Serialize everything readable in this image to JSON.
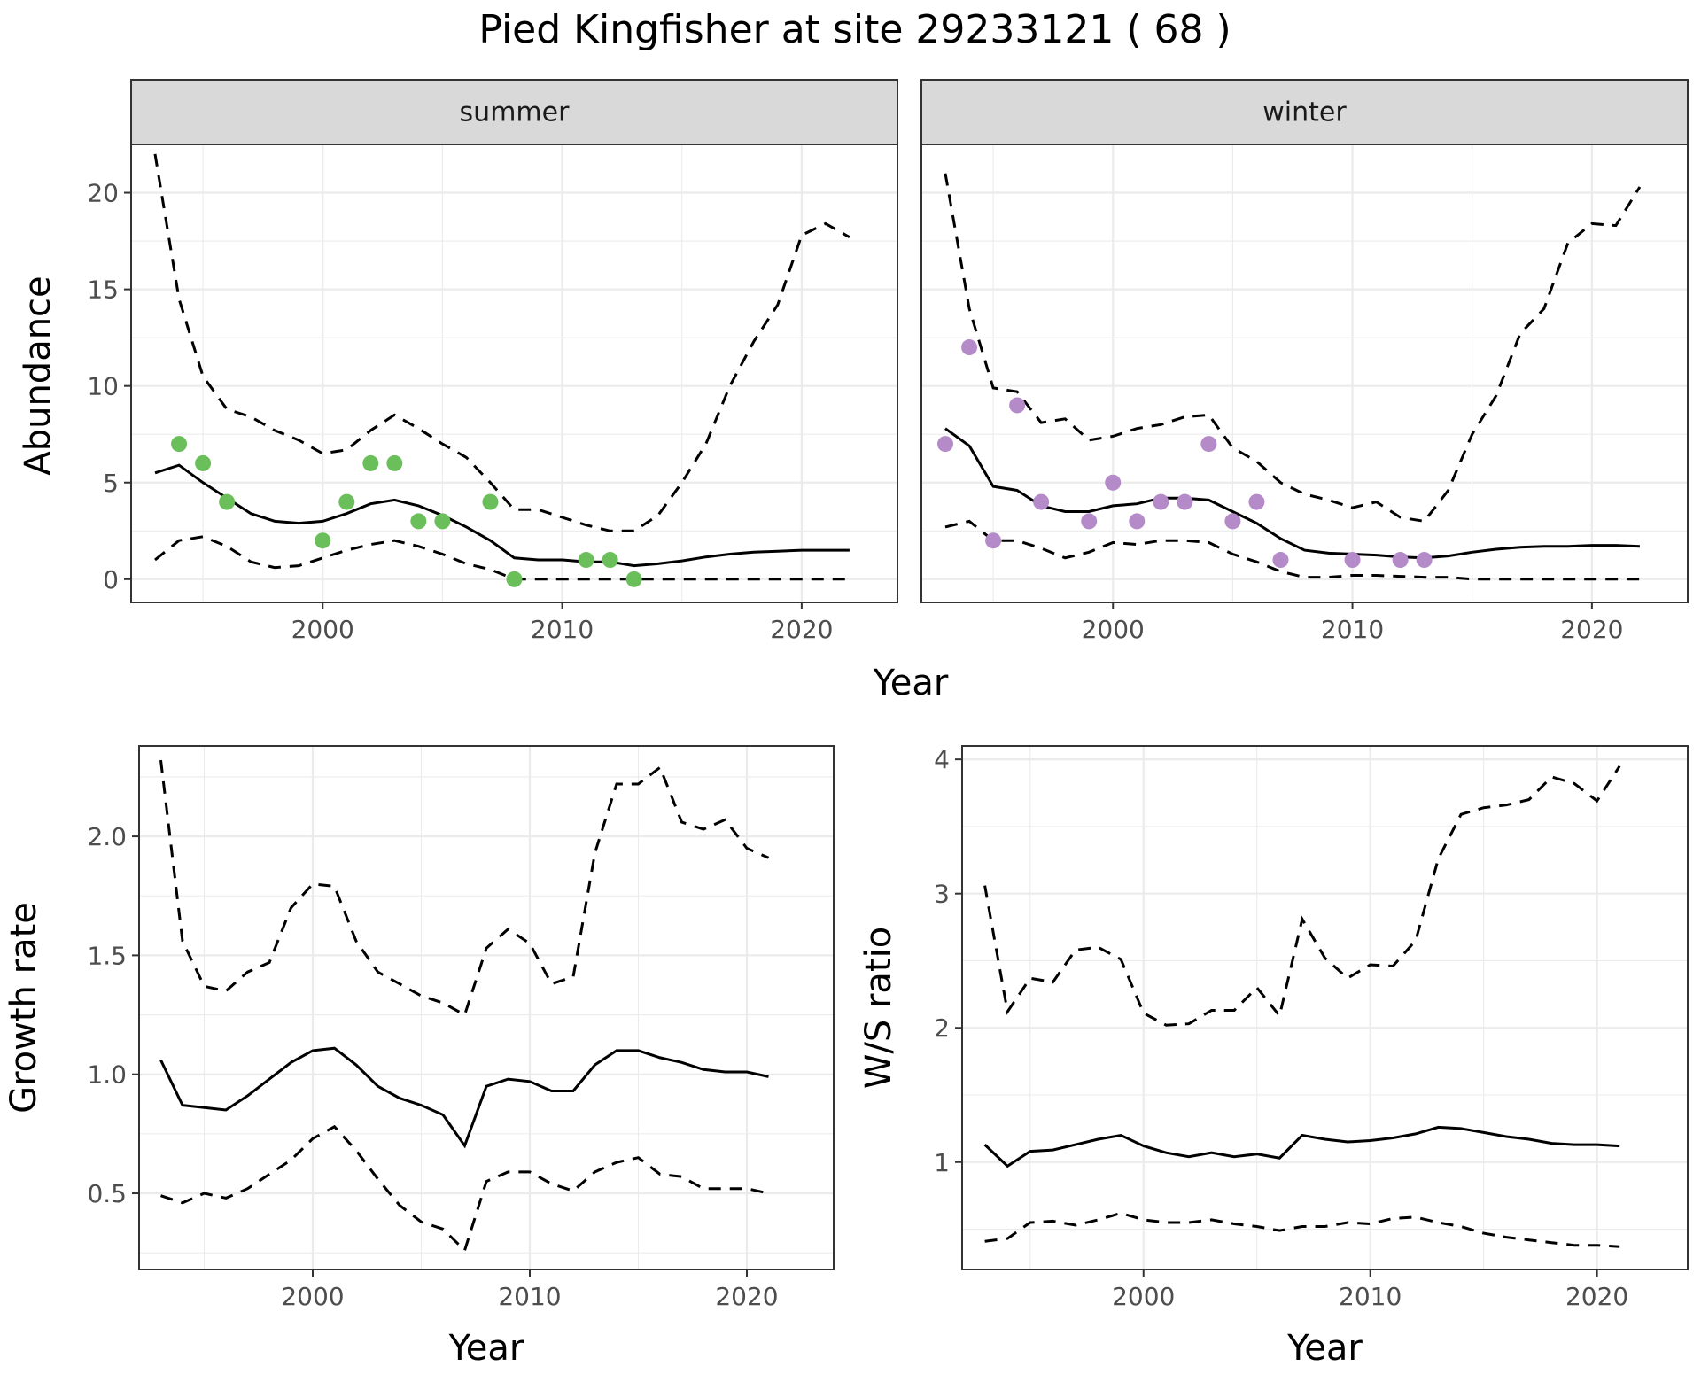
{
  "title": "Pied Kingfisher at site 29233121 ( 68 )",
  "colors": {
    "summer": "#6abf5b",
    "winter": "#b58ac8",
    "line": "#000000",
    "strip": "#d9d9d9"
  },
  "chart_data": [
    {
      "type": "line",
      "facet": "summer",
      "xlabel": "Year",
      "ylabel": "Abundance",
      "xlim": [
        1992,
        2024
      ],
      "ylim": [
        -1.2,
        22.5
      ],
      "xticks": [
        2000,
        2010,
        2020
      ],
      "yticks": [
        0,
        5,
        10,
        15,
        20
      ],
      "series": [
        {
          "role": "estimate",
          "x": [
            1993,
            1994,
            1995,
            1996,
            1997,
            1998,
            1999,
            2000,
            2001,
            2002,
            2003,
            2004,
            2005,
            2006,
            2007,
            2008,
            2009,
            2010,
            2011,
            2012,
            2013,
            2014,
            2015,
            2016,
            2017,
            2018,
            2019,
            2020,
            2021,
            2022
          ],
          "y": [
            5.5,
            5.9,
            5.0,
            4.2,
            3.4,
            3.0,
            2.9,
            3.0,
            3.4,
            3.9,
            4.1,
            3.8,
            3.3,
            2.7,
            2.0,
            1.1,
            1.0,
            1.0,
            0.9,
            0.9,
            0.7,
            0.8,
            0.95,
            1.15,
            1.3,
            1.4,
            1.45,
            1.5,
            1.5,
            1.5
          ]
        },
        {
          "role": "upper",
          "x": [
            1993,
            1994,
            1995,
            1996,
            1997,
            1998,
            1999,
            2000,
            2001,
            2002,
            2003,
            2004,
            2005,
            2006,
            2007,
            2008,
            2009,
            2010,
            2011,
            2012,
            2013,
            2014,
            2015,
            2016,
            2017,
            2018,
            2019,
            2020,
            2021,
            2022
          ],
          "y": [
            22.0,
            14.5,
            10.5,
            8.8,
            8.4,
            7.7,
            7.2,
            6.5,
            6.7,
            7.7,
            8.5,
            7.8,
            7.0,
            6.3,
            5.0,
            3.6,
            3.6,
            3.2,
            2.8,
            2.5,
            2.5,
            3.3,
            5.0,
            7.0,
            10.0,
            12.3,
            14.2,
            17.8,
            18.4,
            17.7
          ]
        },
        {
          "role": "lower",
          "x": [
            1993,
            1994,
            1995,
            1996,
            1997,
            1998,
            1999,
            2000,
            2001,
            2002,
            2003,
            2004,
            2005,
            2006,
            2007,
            2008,
            2009,
            2010,
            2011,
            2012,
            2013,
            2014,
            2015,
            2016,
            2017,
            2018,
            2019,
            2020,
            2021,
            2022
          ],
          "y": [
            1.0,
            2.0,
            2.2,
            1.7,
            0.9,
            0.6,
            0.7,
            1.1,
            1.5,
            1.8,
            2.0,
            1.7,
            1.3,
            0.8,
            0.5,
            0.0,
            0.0,
            0.0,
            0.0,
            0.0,
            0.0,
            0.0,
            0.0,
            0.0,
            0.0,
            0.0,
            0.0,
            0.0,
            0.0,
            0.0
          ]
        },
        {
          "role": "observed",
          "x": [
            1994,
            1995,
            1996,
            2000,
            2001,
            2002,
            2003,
            2004,
            2005,
            2007,
            2008,
            2011,
            2012,
            2013
          ],
          "y": [
            7,
            6,
            4,
            2,
            4,
            6,
            6,
            3,
            3,
            4,
            0,
            1,
            1,
            0
          ]
        }
      ]
    },
    {
      "type": "line",
      "facet": "winter",
      "xlabel": "Year",
      "ylabel": "Abundance",
      "xlim": [
        1992,
        2024
      ],
      "ylim": [
        -1.2,
        22.5
      ],
      "xticks": [
        2000,
        2010,
        2020
      ],
      "yticks": [
        0,
        5,
        10,
        15,
        20
      ],
      "series": [
        {
          "role": "estimate",
          "x": [
            1993,
            1994,
            1995,
            1996,
            1997,
            1998,
            1999,
            2000,
            2001,
            2002,
            2003,
            2004,
            2005,
            2006,
            2007,
            2008,
            2009,
            2010,
            2011,
            2012,
            2013,
            2014,
            2015,
            2016,
            2017,
            2018,
            2019,
            2020,
            2021,
            2022
          ],
          "y": [
            7.8,
            6.9,
            4.8,
            4.6,
            3.8,
            3.5,
            3.5,
            3.8,
            3.9,
            4.2,
            4.2,
            4.1,
            3.5,
            2.9,
            2.1,
            1.5,
            1.35,
            1.3,
            1.25,
            1.15,
            1.1,
            1.2,
            1.4,
            1.55,
            1.65,
            1.7,
            1.7,
            1.75,
            1.75,
            1.7
          ]
        },
        {
          "role": "upper",
          "x": [
            1993,
            1994,
            1995,
            1996,
            1997,
            1998,
            1999,
            2000,
            2001,
            2002,
            2003,
            2004,
            2005,
            2006,
            2007,
            2008,
            2009,
            2010,
            2011,
            2012,
            2013,
            2014,
            2015,
            2016,
            2017,
            2018,
            2019,
            2020,
            2021,
            2022
          ],
          "y": [
            21.0,
            14.0,
            9.9,
            9.7,
            8.1,
            8.3,
            7.2,
            7.4,
            7.8,
            8.0,
            8.4,
            8.5,
            6.8,
            6.1,
            5.0,
            4.4,
            4.1,
            3.7,
            4.0,
            3.2,
            3.0,
            4.6,
            7.5,
            9.5,
            12.7,
            14.0,
            17.4,
            18.4,
            18.3,
            20.3
          ]
        },
        {
          "role": "lower",
          "x": [
            1993,
            1994,
            1995,
            1996,
            1997,
            1998,
            1999,
            2000,
            2001,
            2002,
            2003,
            2004,
            2005,
            2006,
            2007,
            2008,
            2009,
            2010,
            2011,
            2012,
            2013,
            2014,
            2015,
            2016,
            2017,
            2018,
            2019,
            2020,
            2021,
            2022
          ],
          "y": [
            2.7,
            3.0,
            2.0,
            2.0,
            1.6,
            1.1,
            1.4,
            1.9,
            1.8,
            2.0,
            2.0,
            1.9,
            1.3,
            0.9,
            0.4,
            0.1,
            0.1,
            0.2,
            0.2,
            0.15,
            0.1,
            0.1,
            0.0,
            0.0,
            0.0,
            0.0,
            0.0,
            0.0,
            0.0,
            0.0
          ]
        },
        {
          "role": "observed",
          "x": [
            1993,
            1994,
            1995,
            1996,
            1997,
            1999,
            2000,
            2001,
            2002,
            2003,
            2004,
            2005,
            2006,
            2007,
            2010,
            2012,
            2013
          ],
          "y": [
            7,
            12,
            2,
            9,
            4,
            3,
            5,
            3,
            4,
            4,
            7,
            3,
            4,
            1,
            1,
            1,
            1
          ]
        }
      ]
    },
    {
      "type": "line",
      "xlabel": "Year",
      "ylabel": "Growth rate",
      "xlim": [
        1992,
        2024
      ],
      "ylim": [
        0.18,
        2.38
      ],
      "xticks": [
        2000,
        2010,
        2020
      ],
      "yticks": [
        0.5,
        1.0,
        1.5,
        2.0
      ],
      "yticklabels": [
        "0.5",
        "1.0",
        "1.5",
        "2.0"
      ],
      "series": [
        {
          "role": "estimate",
          "x": [
            1993,
            1994,
            1995,
            1996,
            1997,
            1998,
            1999,
            2000,
            2001,
            2002,
            2003,
            2004,
            2005,
            2006,
            2007,
            2008,
            2009,
            2010,
            2011,
            2012,
            2013,
            2014,
            2015,
            2016,
            2017,
            2018,
            2019,
            2020,
            2021
          ],
          "y": [
            1.06,
            0.87,
            0.86,
            0.85,
            0.91,
            0.98,
            1.05,
            1.1,
            1.11,
            1.04,
            0.95,
            0.9,
            0.87,
            0.83,
            0.7,
            0.95,
            0.98,
            0.97,
            0.93,
            0.93,
            1.04,
            1.1,
            1.1,
            1.07,
            1.05,
            1.02,
            1.01,
            1.01,
            0.99
          ]
        },
        {
          "role": "upper",
          "x": [
            1993,
            1994,
            1995,
            1996,
            1997,
            1998,
            1999,
            2000,
            2001,
            2002,
            2003,
            2004,
            2005,
            2006,
            2007,
            2008,
            2009,
            2010,
            2011,
            2012,
            2013,
            2014,
            2015,
            2016,
            2017,
            2018,
            2019,
            2020,
            2021
          ],
          "y": [
            2.32,
            1.56,
            1.37,
            1.35,
            1.43,
            1.47,
            1.7,
            1.8,
            1.79,
            1.56,
            1.43,
            1.38,
            1.33,
            1.3,
            1.25,
            1.53,
            1.61,
            1.55,
            1.38,
            1.41,
            1.93,
            2.22,
            2.22,
            2.29,
            2.06,
            2.03,
            2.07,
            1.95,
            1.91
          ]
        },
        {
          "role": "lower",
          "x": [
            1993,
            1994,
            1995,
            1996,
            1997,
            1998,
            1999,
            2000,
            2001,
            2002,
            2003,
            2004,
            2005,
            2006,
            2007,
            2008,
            2009,
            2010,
            2011,
            2012,
            2013,
            2014,
            2015,
            2016,
            2017,
            2018,
            2019,
            2020,
            2021
          ],
          "y": [
            0.49,
            0.46,
            0.5,
            0.48,
            0.52,
            0.58,
            0.64,
            0.73,
            0.78,
            0.68,
            0.56,
            0.45,
            0.38,
            0.35,
            0.26,
            0.55,
            0.59,
            0.59,
            0.54,
            0.51,
            0.59,
            0.63,
            0.65,
            0.58,
            0.57,
            0.52,
            0.52,
            0.52,
            0.5
          ]
        }
      ]
    },
    {
      "type": "line",
      "xlabel": "Year",
      "ylabel": "W/S ratio",
      "xlim": [
        1992,
        2024
      ],
      "ylim": [
        0.2,
        4.1
      ],
      "xticks": [
        2000,
        2010,
        2020
      ],
      "yticks": [
        1,
        2,
        3,
        4
      ],
      "series": [
        {
          "role": "estimate",
          "x": [
            1993,
            1994,
            1995,
            1996,
            1997,
            1998,
            1999,
            2000,
            2001,
            2002,
            2003,
            2004,
            2005,
            2006,
            2007,
            2008,
            2009,
            2010,
            2011,
            2012,
            2013,
            2014,
            2015,
            2016,
            2017,
            2018,
            2019,
            2020,
            2021
          ],
          "y": [
            1.13,
            0.97,
            1.08,
            1.09,
            1.13,
            1.17,
            1.2,
            1.12,
            1.07,
            1.04,
            1.07,
            1.04,
            1.06,
            1.03,
            1.2,
            1.17,
            1.15,
            1.16,
            1.18,
            1.21,
            1.26,
            1.25,
            1.22,
            1.19,
            1.17,
            1.14,
            1.13,
            1.13,
            1.12
          ]
        },
        {
          "role": "upper",
          "x": [
            1993,
            1994,
            1995,
            1996,
            1997,
            1998,
            1999,
            2000,
            2001,
            2002,
            2003,
            2004,
            2005,
            2006,
            2007,
            2008,
            2009,
            2010,
            2011,
            2012,
            2013,
            2014,
            2015,
            2016,
            2017,
            2018,
            2019,
            2020,
            2021
          ],
          "y": [
            3.06,
            2.12,
            2.37,
            2.34,
            2.58,
            2.6,
            2.51,
            2.11,
            2.02,
            2.03,
            2.13,
            2.13,
            2.3,
            2.09,
            2.81,
            2.52,
            2.37,
            2.47,
            2.46,
            2.65,
            3.26,
            3.59,
            3.64,
            3.66,
            3.7,
            3.87,
            3.82,
            3.69,
            3.95
          ]
        },
        {
          "role": "lower",
          "x": [
            1993,
            1994,
            1995,
            1996,
            1997,
            1998,
            1999,
            2000,
            2001,
            2002,
            2003,
            2004,
            2005,
            2006,
            2007,
            2008,
            2009,
            2010,
            2011,
            2012,
            2013,
            2014,
            2015,
            2016,
            2017,
            2018,
            2019,
            2020,
            2021
          ],
          "y": [
            0.41,
            0.43,
            0.55,
            0.56,
            0.53,
            0.57,
            0.62,
            0.57,
            0.55,
            0.55,
            0.57,
            0.54,
            0.52,
            0.49,
            0.52,
            0.52,
            0.55,
            0.54,
            0.58,
            0.59,
            0.55,
            0.52,
            0.47,
            0.44,
            0.42,
            0.4,
            0.38,
            0.38,
            0.37
          ]
        }
      ]
    }
  ]
}
